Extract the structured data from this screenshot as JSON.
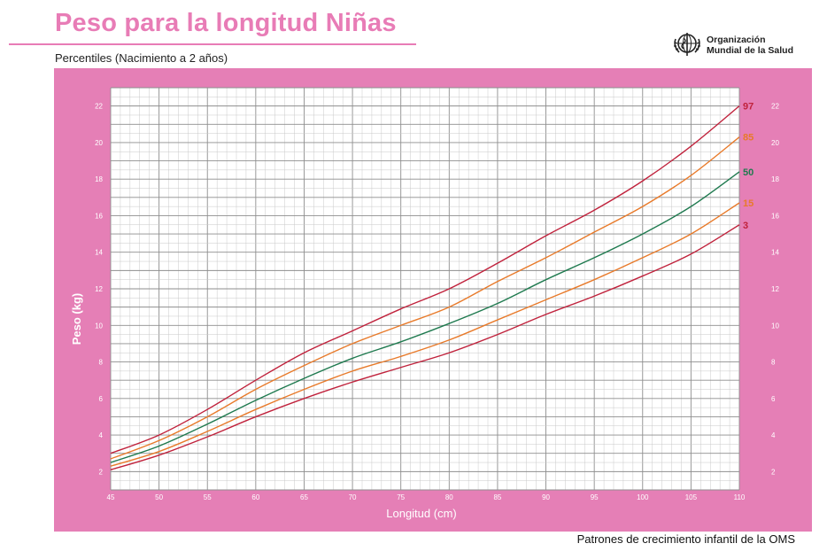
{
  "header": {
    "title": "Peso para la longitud Niñas",
    "subtitle": "Percentiles (Nacimiento a 2 años)",
    "org_line1": "Organización",
    "org_line2": "Mundial de la Salud",
    "footer": "Patrones de crecimiento infantil de la OMS"
  },
  "colors": {
    "frame": "#e57fb6",
    "plot_bg": "#ffffff",
    "grid_major": "#8e8e8e",
    "grid_minor": "#c9c9c9",
    "title": "#e87cb6"
  },
  "chart_data": {
    "type": "line",
    "title": "Peso para la longitud Niñas",
    "subtitle": "Percentiles (Nacimiento a 2 años)",
    "xlabel": "Longitud (cm)",
    "ylabel": "Peso (kg)",
    "xlim": [
      45,
      110
    ],
    "ylim": [
      1,
      23
    ],
    "x_ticks": [
      45,
      50,
      55,
      60,
      65,
      70,
      75,
      80,
      85,
      90,
      95,
      100,
      105,
      110
    ],
    "y_ticks": [
      2,
      4,
      6,
      8,
      10,
      12,
      14,
      16,
      18,
      20,
      22
    ],
    "grid": true,
    "x": [
      45,
      50,
      55,
      60,
      65,
      70,
      75,
      80,
      85,
      90,
      95,
      100,
      105,
      110
    ],
    "series": [
      {
        "name": "97",
        "color": "#c0223c",
        "values": [
          3.0,
          4.0,
          5.4,
          7.0,
          8.5,
          9.7,
          10.9,
          12.0,
          13.4,
          14.9,
          16.3,
          17.9,
          19.8,
          22.0
        ]
      },
      {
        "name": "85",
        "color": "#e87a2a",
        "values": [
          2.7,
          3.7,
          5.0,
          6.5,
          7.8,
          9.0,
          10.0,
          11.0,
          12.4,
          13.7,
          15.1,
          16.5,
          18.2,
          20.3
        ]
      },
      {
        "name": "50",
        "color": "#1f7a4f",
        "values": [
          2.5,
          3.4,
          4.6,
          5.9,
          7.1,
          8.2,
          9.1,
          10.1,
          11.2,
          12.5,
          13.7,
          15.0,
          16.5,
          18.4
        ]
      },
      {
        "name": "15",
        "color": "#e87a2a",
        "values": [
          2.3,
          3.1,
          4.2,
          5.4,
          6.5,
          7.5,
          8.3,
          9.2,
          10.3,
          11.4,
          12.5,
          13.7,
          15.0,
          16.7
        ]
      },
      {
        "name": "3",
        "color": "#c0223c",
        "values": [
          2.1,
          2.9,
          3.9,
          5.0,
          6.0,
          6.9,
          7.7,
          8.5,
          9.5,
          10.6,
          11.6,
          12.7,
          13.9,
          15.5
        ]
      }
    ]
  }
}
